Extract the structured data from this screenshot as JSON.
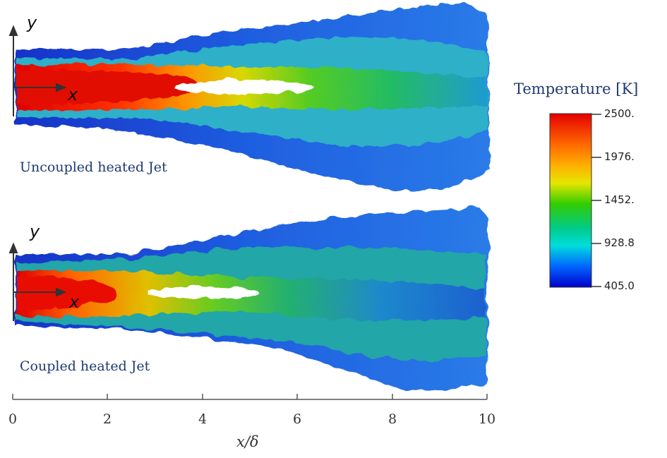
{
  "panels": [
    {
      "label": "Uncoupled heated Jet"
    },
    {
      "label": "Coupled heated Jet"
    }
  ],
  "axis_letters": {
    "x": "x",
    "y": "y"
  },
  "colorbar": {
    "title": "Temperature [K]",
    "ticks": [
      "2500.",
      "1976.",
      "1452.",
      "928.8",
      "405.0"
    ],
    "colors": [
      "#e50000",
      "#ffa500",
      "#e6e600",
      "#33cc00",
      "#00dddd",
      "#0055ff",
      "#0000cc"
    ]
  },
  "x_axis": {
    "label": "x/δ",
    "ticks": [
      "0",
      "2",
      "4",
      "6",
      "8",
      "10"
    ]
  }
}
